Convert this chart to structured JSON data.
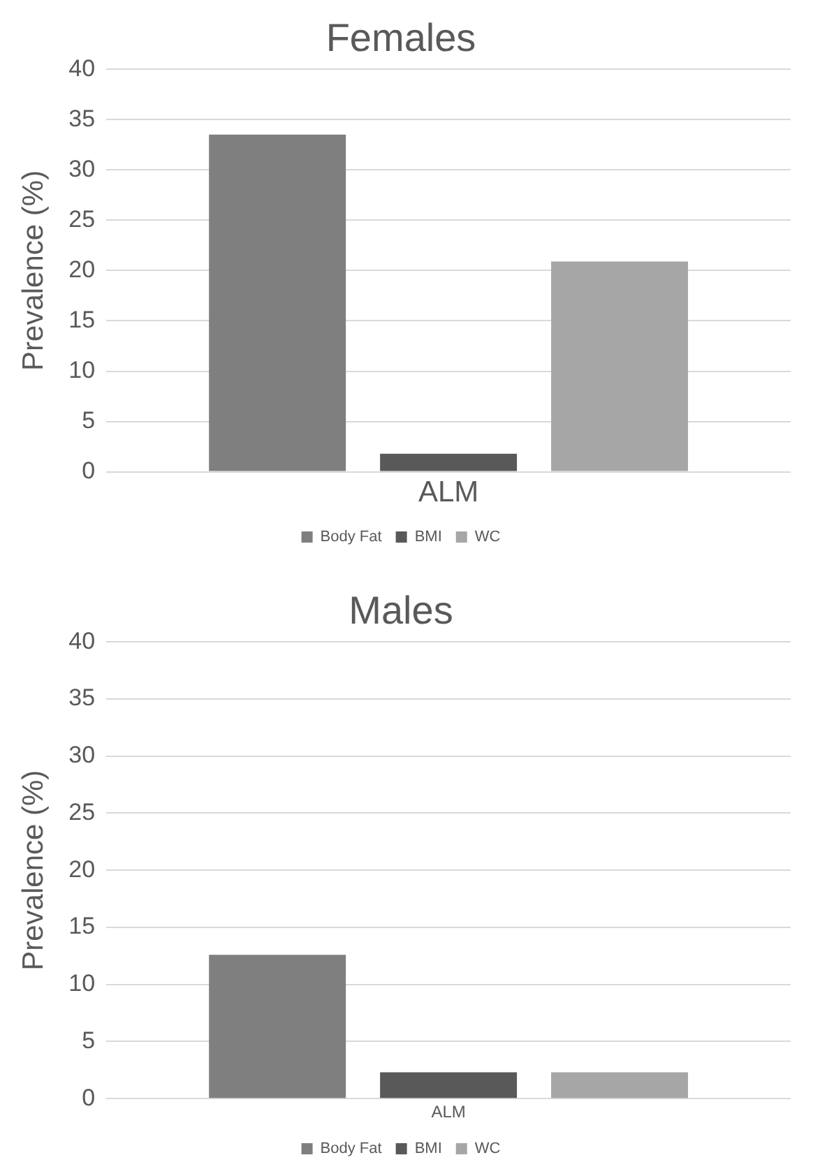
{
  "chart_data": [
    {
      "type": "bar",
      "title": "Females",
      "ylabel": "Prevalence (%)",
      "categories": [
        "ALM"
      ],
      "ylim": [
        0,
        40
      ],
      "yticks": [
        0,
        5,
        10,
        15,
        20,
        25,
        30,
        35,
        40
      ],
      "grid": "y",
      "legend": "bottom",
      "series": [
        {
          "name": "Body Fat",
          "color": "#7f7f7f",
          "values": [
            33.5
          ]
        },
        {
          "name": "BMI",
          "color": "#595959",
          "values": [
            1.8
          ]
        },
        {
          "name": "WC",
          "color": "#a6a6a6",
          "values": [
            20.9
          ]
        }
      ]
    },
    {
      "type": "bar",
      "title": "Males",
      "ylabel": "Prevalence (%)",
      "categories": [
        "ALM"
      ],
      "ylim": [
        0,
        40
      ],
      "yticks": [
        0,
        5,
        10,
        15,
        20,
        25,
        30,
        35,
        40
      ],
      "grid": "y",
      "legend": "bottom",
      "series": [
        {
          "name": "Body Fat",
          "color": "#7f7f7f",
          "values": [
            12.6
          ]
        },
        {
          "name": "BMI",
          "color": "#595959",
          "values": [
            2.3
          ]
        },
        {
          "name": "WC",
          "color": "#a6a6a6",
          "values": [
            2.3
          ]
        }
      ]
    }
  ]
}
